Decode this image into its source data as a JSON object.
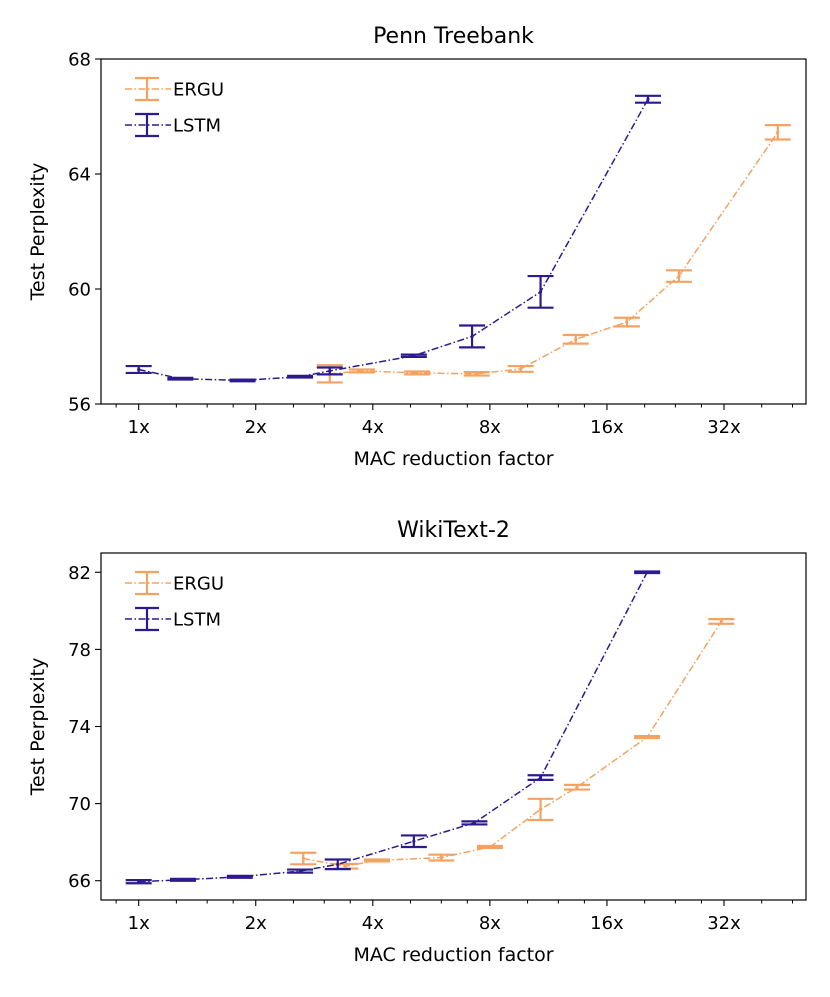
{
  "chart_data": [
    {
      "type": "line",
      "title": "Penn Treebank",
      "xlabel": "MAC reduction factor",
      "ylabel": "Test Perplexity",
      "xscale": "log2",
      "xlim": [
        0.8,
        52
      ],
      "ylim": [
        56,
        68
      ],
      "xticks": [
        1,
        2,
        4,
        8,
        16,
        32
      ],
      "xtick_labels": [
        "1x",
        "2x",
        "4x",
        "8x",
        "16x",
        "32x"
      ],
      "yticks": [
        56,
        60,
        64,
        68
      ],
      "ytick_labels": [
        "56",
        "60",
        "64",
        "68"
      ],
      "legend_position": "top-left",
      "series": [
        {
          "name": "ERGU",
          "color": "#f4a261",
          "x": [
            3.1,
            3.75,
            5.2,
            7.4,
            9.6,
            13.3,
            18,
            24.5,
            44
          ],
          "y": [
            57.05,
            57.15,
            57.08,
            57.05,
            57.22,
            58.25,
            58.85,
            60.45,
            65.45
          ],
          "err": [
            0.3,
            0.05,
            0.05,
            0.06,
            0.1,
            0.15,
            0.15,
            0.2,
            0.25
          ]
        },
        {
          "name": "LSTM",
          "color": "#2e1a8e",
          "x": [
            1,
            1.28,
            1.85,
            2.6,
            3.1,
            5.1,
            7.2,
            10.8,
            20.4
          ],
          "y": [
            57.2,
            56.88,
            56.82,
            56.95,
            57.15,
            57.68,
            58.35,
            59.9,
            66.6
          ],
          "err": [
            0.12,
            0.03,
            0.03,
            0.03,
            0.12,
            0.04,
            0.38,
            0.55,
            0.12
          ]
        }
      ]
    },
    {
      "type": "line",
      "title": "WikiText-2",
      "xlabel": "MAC reduction factor",
      "ylabel": "Test Perplexity",
      "xscale": "log2",
      "xlim": [
        0.8,
        52
      ],
      "ylim": [
        65,
        83
      ],
      "xticks": [
        1,
        2,
        4,
        8,
        16,
        32
      ],
      "xtick_labels": [
        "1x",
        "2x",
        "4x",
        "8x",
        "16x",
        "32x"
      ],
      "yticks": [
        66,
        70,
        74,
        78,
        82
      ],
      "ytick_labels": [
        "66",
        "70",
        "74",
        "78",
        "82"
      ],
      "legend_position": "top-left",
      "series": [
        {
          "name": "ERGU",
          "color": "#f4a261",
          "x": [
            2.65,
            3.4,
            4.1,
            6,
            8,
            10.8,
            13.4,
            20.3,
            31.5
          ],
          "y": [
            67.15,
            66.75,
            67.05,
            67.2,
            67.75,
            69.7,
            70.85,
            73.45,
            79.45
          ],
          "err": [
            0.3,
            0.12,
            0.05,
            0.15,
            0.05,
            0.55,
            0.12,
            0.05,
            0.12
          ]
        },
        {
          "name": "LSTM",
          "color": "#2e1a8e",
          "x": [
            1,
            1.3,
            1.82,
            2.6,
            3.25,
            5.1,
            7.3,
            10.8,
            20.3
          ],
          "y": [
            65.95,
            66.05,
            66.2,
            66.5,
            66.85,
            68.05,
            69,
            71.35,
            82
          ],
          "err": [
            0.08,
            0.05,
            0.05,
            0.08,
            0.25,
            0.3,
            0.08,
            0.12,
            0.04
          ]
        }
      ]
    }
  ]
}
